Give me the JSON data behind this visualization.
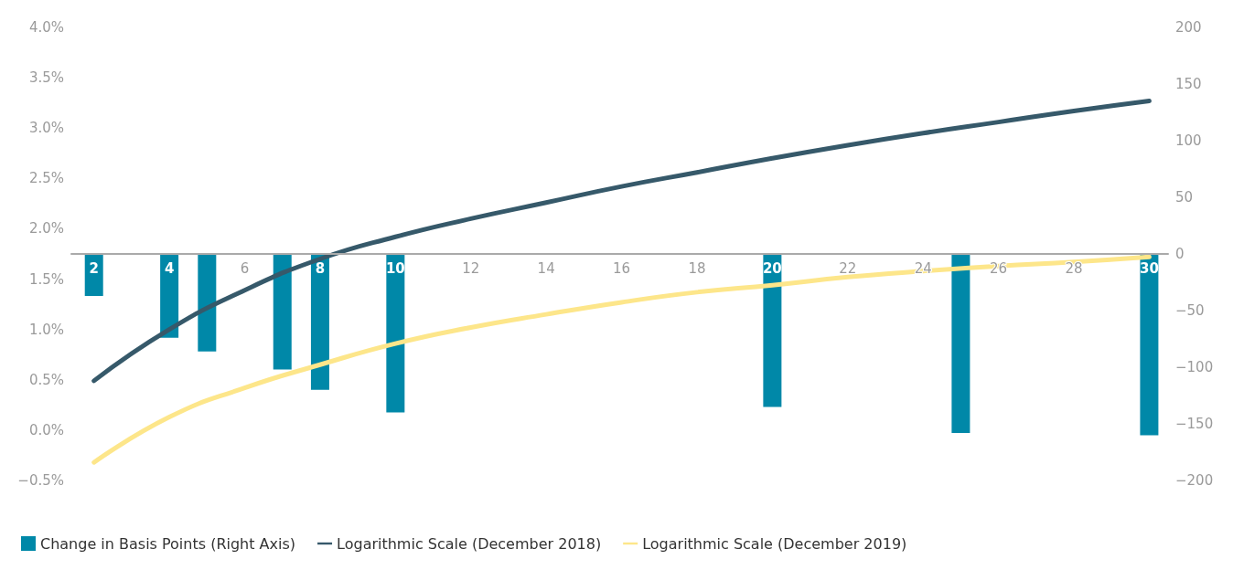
{
  "chart_data": {
    "type": "line",
    "xlim": [
      1.4,
      30.5
    ],
    "xticks": [
      2,
      4,
      6,
      8,
      10,
      12,
      14,
      16,
      18,
      20,
      22,
      24,
      26,
      28,
      30
    ],
    "ylim": [
      -0.5,
      4.0
    ],
    "yticks": [
      {
        "value": -0.5,
        "label": "−0.5%"
      },
      {
        "value": 0,
        "label": "0.0%"
      },
      {
        "value": 0.5,
        "label": "0.5%"
      },
      {
        "value": 1.0,
        "label": "1.0%"
      },
      {
        "value": 1.5,
        "label": "1.5%"
      },
      {
        "value": 2.0,
        "label": "2.0%"
      },
      {
        "value": 2.5,
        "label": "2.5%"
      },
      {
        "value": 3.0,
        "label": "3.0%"
      },
      {
        "value": 3.5,
        "label": "3.5%"
      },
      {
        "value": 4.0,
        "label": "4.0%"
      }
    ],
    "y2lim": [
      -200,
      200
    ],
    "y2ticks": [
      {
        "value": -200,
        "label": "−200"
      },
      {
        "value": -150,
        "label": "−150"
      },
      {
        "value": -100,
        "label": "−100"
      },
      {
        "value": -50,
        "label": "−50"
      },
      0,
      50,
      100,
      150,
      200
    ],
    "grid": false,
    "legend": "bottom left",
    "marker": "none",
    "line_style": "solid",
    "series": [
      {
        "name": "Change in Basis Points (Right Axis)",
        "type": "bar",
        "axis": "y2",
        "color": "#0088a8",
        "x": [
          2,
          4,
          5,
          7,
          8,
          10,
          20,
          25,
          30
        ],
        "values": [
          -37,
          -74,
          -86,
          -102,
          -120,
          -140,
          -135,
          -158,
          -160
        ]
      },
      {
        "name": "Logarithmic Scale (December 2018)",
        "color": "#36596a",
        "x": [
          2,
          4,
          6,
          8,
          10,
          12,
          14,
          16,
          18,
          20,
          22,
          24,
          26,
          28,
          30
        ],
        "values": [
          0.49,
          1.0,
          1.39,
          1.7,
          1.92,
          2.1,
          2.26,
          2.42,
          2.56,
          2.7,
          2.83,
          2.95,
          3.06,
          3.17,
          3.27
        ]
      },
      {
        "name": "Logarithmic Scale (December 2019)",
        "color": "#fde68a",
        "x": [
          2,
          4,
          6,
          8,
          10,
          12,
          14,
          16,
          18,
          20,
          22,
          24,
          26,
          28,
          30
        ],
        "values": [
          -0.32,
          0.13,
          0.42,
          0.65,
          0.86,
          1.02,
          1.15,
          1.27,
          1.37,
          1.44,
          1.52,
          1.58,
          1.63,
          1.67,
          1.72
        ]
      }
    ]
  }
}
